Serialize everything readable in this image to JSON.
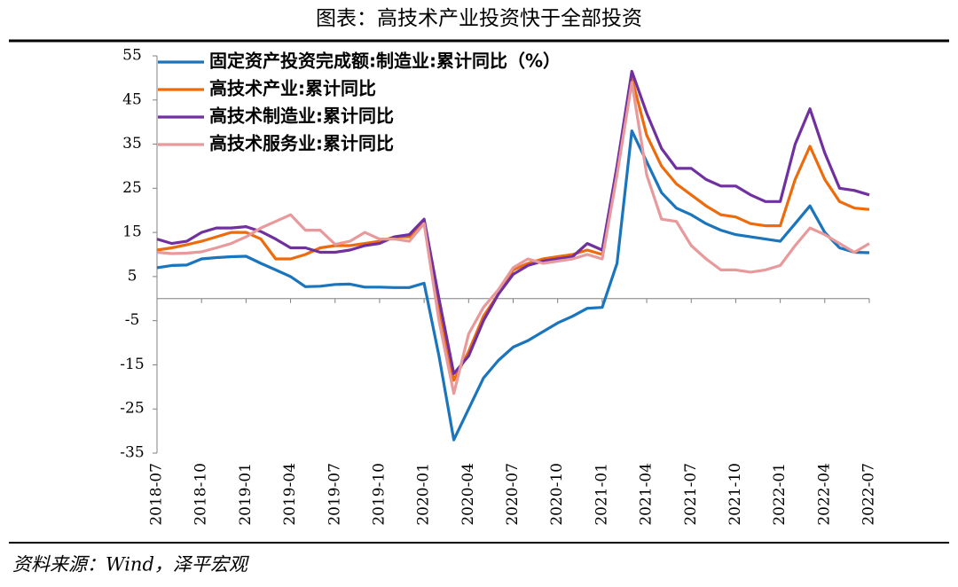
{
  "title": "图表：高技术产业投资快于全部投资",
  "source": "资料来源：Wind，泽平宏观",
  "chart_data": {
    "type": "line",
    "categories": [
      "2018-07",
      null,
      null,
      "2018-10",
      null,
      null,
      "2019-01",
      null,
      null,
      "2019-04",
      null,
      null,
      "2019-07",
      null,
      null,
      "2019-10",
      null,
      null,
      "2020-01",
      null,
      null,
      "2020-04",
      null,
      null,
      "2020-07",
      null,
      null,
      "2020-10",
      null,
      null,
      "2021-01",
      null,
      null,
      "2021-04",
      null,
      null,
      "2021-07",
      null,
      null,
      "2021-10",
      null,
      null,
      "2022-01",
      null,
      null,
      "2022-04",
      null,
      null,
      "2022-07"
    ],
    "series": [
      {
        "name": "固定资产投资完成额:制造业:累计同比（%）",
        "color": "#1a75bc",
        "values": [
          7,
          7.5,
          7.6,
          9,
          9.3,
          9.5,
          9.6,
          8,
          6.5,
          5,
          2.7,
          2.8,
          3.2,
          3.3,
          2.6,
          2.6,
          2.5,
          2.5,
          3.5,
          -13,
          -32,
          -25,
          -18,
          -14,
          -11,
          -9.5,
          -7.5,
          -5.5,
          -4,
          -2.2,
          -2,
          8,
          38,
          31,
          24,
          20.5,
          19,
          17,
          15.5,
          14.5,
          14,
          13.5,
          13,
          17,
          21,
          15,
          11.5,
          10.5,
          10.4
        ]
      },
      {
        "name": "高技术产业:累计同比",
        "color": "#ee6b0c",
        "values": [
          11,
          11.5,
          12.2,
          13,
          14,
          15,
          15,
          13.5,
          9,
          9,
          10,
          11.5,
          12,
          12,
          12.5,
          13,
          14,
          14,
          17.5,
          -2,
          -18.5,
          -12,
          -4,
          1,
          6.5,
          8,
          9,
          9.5,
          10,
          11,
          10,
          30,
          50,
          37,
          30,
          26,
          23.5,
          21,
          19,
          18.5,
          17,
          16.5,
          16.5,
          27,
          34.5,
          27,
          22,
          20.5,
          20.2
        ]
      },
      {
        "name": "高技术制造业:累计同比",
        "color": "#7030a0",
        "values": [
          13.5,
          12.5,
          13,
          15,
          16,
          16,
          16.3,
          15.2,
          13.5,
          11.5,
          11.5,
          10.5,
          10.5,
          11,
          12,
          12.5,
          14,
          14.5,
          18,
          0,
          -17,
          -13,
          -5,
          1,
          5.5,
          7.5,
          8.5,
          9,
          9.5,
          12.5,
          11,
          30,
          51.5,
          42,
          34,
          29.5,
          29.5,
          27,
          25.5,
          25.5,
          23.5,
          22,
          22,
          35,
          43,
          33,
          25,
          24.5,
          23.5
        ]
      },
      {
        "name": "高技术服务业:累计同比",
        "color": "#e8999b",
        "values": [
          10.5,
          10.2,
          10.3,
          10.6,
          11.5,
          12.5,
          14,
          16,
          17.5,
          19,
          15.5,
          15.5,
          12.3,
          13,
          15,
          13.5,
          13.5,
          13,
          17,
          -5,
          -21.5,
          -8,
          -2,
          2,
          7,
          9,
          8,
          8.5,
          9,
          10,
          9,
          28,
          49,
          28,
          18,
          17.5,
          12,
          9,
          6.5,
          6.5,
          6,
          6.5,
          7.5,
          12,
          16,
          14.5,
          12.5,
          10.5,
          12.5
        ]
      }
    ],
    "ylim": [
      -35,
      55
    ],
    "yticks": [
      55,
      45,
      35,
      25,
      15,
      5,
      -5,
      -15,
      -25,
      -35
    ]
  }
}
